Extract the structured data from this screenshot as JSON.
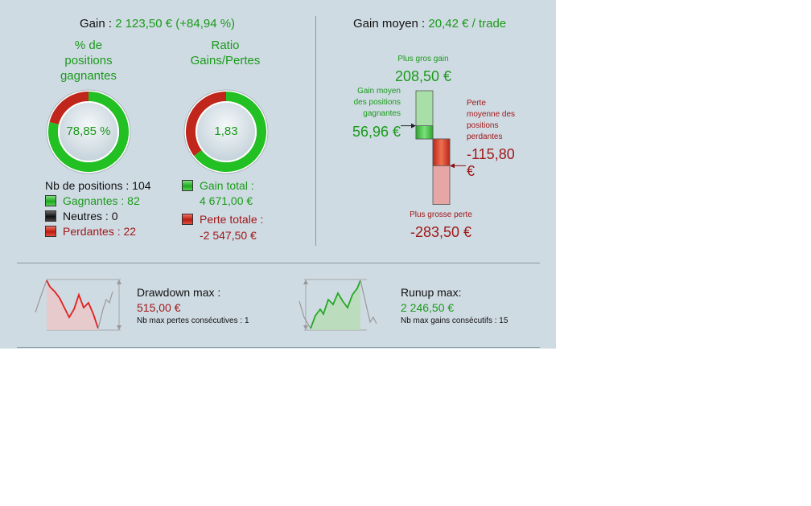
{
  "gain": {
    "label": "Gain : ",
    "value": "2 123,50 € (+84,94 %)"
  },
  "gain_moyen": {
    "label": "Gain moyen : ",
    "value": "20,42 € / trade"
  },
  "pct_positions": {
    "title_l1": "% de",
    "title_l2": "positions",
    "title_l3": "gagnantes",
    "value": "78,85 %",
    "fraction_winning": 0.7885
  },
  "ratio": {
    "title_l1": "Ratio",
    "title_l2": "Gains/Pertes",
    "value": "1,83",
    "fraction_gain": 0.647
  },
  "positions": {
    "nb_label": "Nb de positions : 104",
    "gagnantes": "Gagnantes : 82",
    "neutres": "Neutres : 0",
    "perdantes": "Perdantes : 22"
  },
  "totals": {
    "gain_label": "Gain total :",
    "gain_value": "4 671,00 €",
    "perte_label": "Perte totale :",
    "perte_value": "-2 547,50 €"
  },
  "trade_chart": {
    "plus_gros_gain_label": "Plus gros gain",
    "plus_gros_gain_value": "208,50 €",
    "gain_moyen_l1": "Gain moyen",
    "gain_moyen_l2": "des positions",
    "gain_moyen_l3": "gagnantes",
    "gain_moyen_value": "56,96 €",
    "perte_moyenne_l1": "Perte",
    "perte_moyenne_l2": "moyenne des",
    "perte_moyenne_l3": "positions",
    "perte_moyenne_l4": "perdantes",
    "perte_moyenne_value_l1": "-115,80",
    "perte_moyenne_value_l2": "€",
    "plus_grosse_perte_label": "Plus grosse perte",
    "plus_grosse_perte_value": "-283,50 €",
    "max_gain": 208.5,
    "avg_gain": 56.96,
    "avg_loss": 115.8,
    "max_loss": 283.5
  },
  "drawdown": {
    "title": "Drawdown max :",
    "value": "515,00 €",
    "detail": "Nb max pertes consécutives : 1"
  },
  "runup": {
    "title": "Runup max:",
    "value": "2 246,50 €",
    "detail": "Nb max gains consécutifs : 15"
  },
  "colors": {
    "green": "#1a9a1a",
    "red": "#a01818",
    "panel": "#cfdbe3"
  }
}
